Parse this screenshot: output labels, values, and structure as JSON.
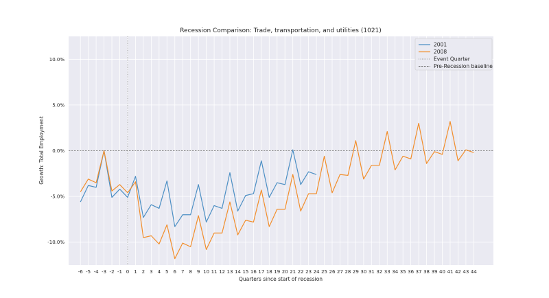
{
  "chart_data": {
    "type": "line",
    "title": "Recession Comparison: Trade, transportation, and utilities (1021)",
    "xlabel": "Quarters since start of recession",
    "ylabel": "Growth: Total Employment",
    "x_ticks": [
      -6,
      -5,
      -4,
      -3,
      -2,
      -1,
      0,
      1,
      2,
      3,
      4,
      5,
      6,
      7,
      8,
      9,
      10,
      11,
      12,
      13,
      14,
      15,
      16,
      17,
      18,
      19,
      20,
      21,
      22,
      23,
      24,
      25,
      26,
      27,
      28,
      29,
      30,
      31,
      32,
      33,
      34,
      35,
      36,
      37,
      38,
      39,
      40,
      41,
      42,
      43,
      44
    ],
    "xlim": [
      -7.5,
      46.5
    ],
    "ylim": [
      -12.5,
      12.5
    ],
    "y_ticks": [
      -10,
      -5,
      0,
      5,
      10
    ],
    "y_tick_labels": [
      "-10.0%",
      "-5.0%",
      "0.0%",
      "5.0%",
      "10.0%"
    ],
    "grid": true,
    "legend_position": "top-right",
    "event_quarter": 0,
    "baseline": 0,
    "series": [
      {
        "name": "2001",
        "color": "#4c8fc4",
        "x": [
          -6,
          -5,
          -4,
          -3,
          -2,
          -1,
          0,
          1,
          2,
          3,
          4,
          5,
          6,
          7,
          8,
          9,
          10,
          11,
          12,
          13,
          14,
          15,
          16,
          17,
          18,
          19,
          20,
          21,
          22,
          23,
          24
        ],
        "values": [
          -5.6,
          -3.8,
          -4.0,
          0.0,
          -5.1,
          -4.2,
          -5.1,
          -2.8,
          -7.3,
          -5.9,
          -6.3,
          -3.3,
          -8.3,
          -7.0,
          -7.0,
          -3.7,
          -7.8,
          -6.0,
          -6.3,
          -2.4,
          -6.6,
          -4.9,
          -4.7,
          -1.1,
          -5.1,
          -3.5,
          -3.7,
          0.1,
          -3.7,
          -2.3,
          -2.6
        ]
      },
      {
        "name": "2008",
        "color": "#f28e2b",
        "x": [
          -6,
          -5,
          -4,
          -3,
          -2,
          -1,
          0,
          1,
          2,
          3,
          4,
          5,
          6,
          7,
          8,
          9,
          10,
          11,
          12,
          13,
          14,
          15,
          16,
          17,
          18,
          19,
          20,
          21,
          22,
          23,
          24,
          25,
          26,
          27,
          28,
          29,
          30,
          31,
          32,
          33,
          34,
          35,
          36,
          37,
          38,
          39,
          40,
          41,
          42,
          43,
          44
        ],
        "values": [
          -4.5,
          -3.1,
          -3.5,
          0.0,
          -4.4,
          -3.7,
          -4.6,
          -3.4,
          -9.5,
          -9.3,
          -10.2,
          -8.1,
          -11.8,
          -10.1,
          -10.5,
          -7.1,
          -10.8,
          -9.0,
          -9.0,
          -5.6,
          -9.2,
          -7.6,
          -7.8,
          -4.3,
          -8.3,
          -6.4,
          -6.4,
          -2.6,
          -6.6,
          -4.7,
          -4.7,
          -0.6,
          -4.6,
          -2.6,
          -2.7,
          1.1,
          -3.1,
          -1.6,
          -1.6,
          2.1,
          -2.1,
          -0.6,
          -0.9,
          3.0,
          -1.4,
          -0.1,
          -0.4,
          3.2,
          -1.1,
          0.1,
          -0.2
        ]
      }
    ],
    "legend": {
      "entries": [
        {
          "label": "2001",
          "color": "#4c8fc4",
          "style": "solid"
        },
        {
          "label": "2008",
          "color": "#f28e2b",
          "style": "solid"
        },
        {
          "label": "Event Quarter",
          "color": "#999999",
          "style": "dotted"
        },
        {
          "label": "Pre-Recession baseline",
          "color": "#666666",
          "style": "dashed"
        }
      ]
    }
  }
}
